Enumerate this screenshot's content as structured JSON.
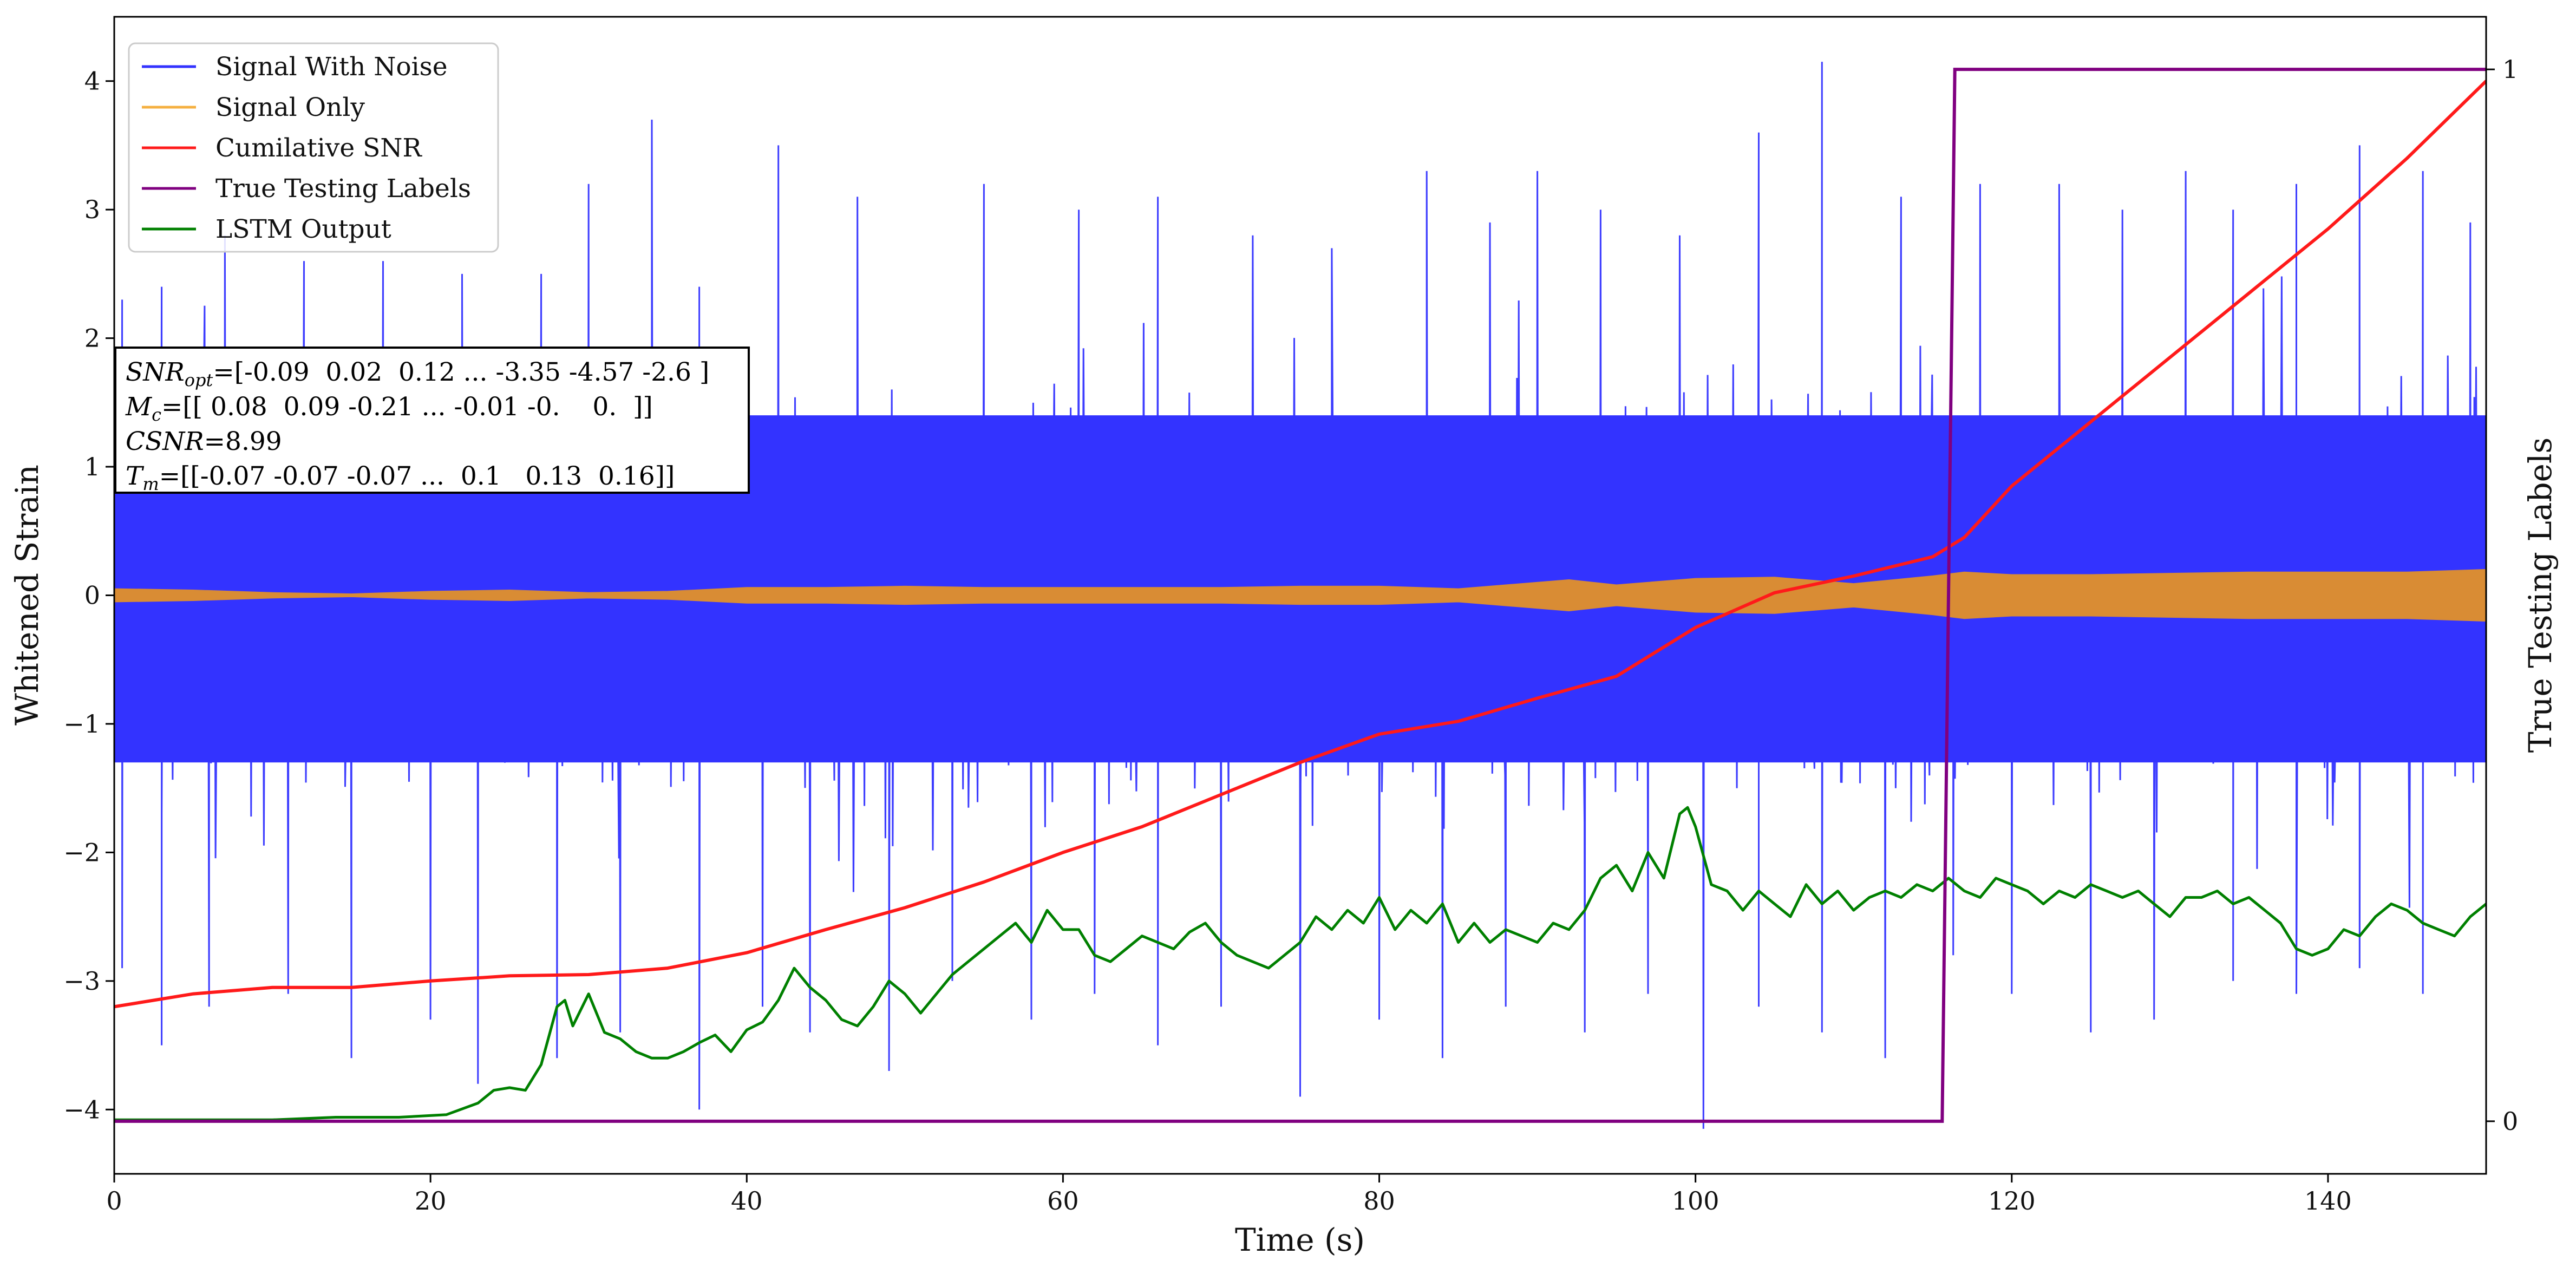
{
  "chart_data": {
    "type": "line",
    "title": "",
    "xlabel": "Time (s)",
    "ylabel": "Whitened Strain",
    "y2label": "True Testing Labels",
    "xlim": [
      0,
      150
    ],
    "ylim": [
      -4.5,
      4.5
    ],
    "y2lim": [
      -0.05,
      1.05
    ],
    "xticks": [
      0,
      20,
      40,
      60,
      80,
      100,
      120,
      140
    ],
    "yticks": [
      -4,
      -3,
      -2,
      -1,
      0,
      1,
      2,
      3,
      4
    ],
    "y2ticks": [
      0,
      1
    ],
    "grid": false,
    "legend_position": "top-left",
    "legend": [
      {
        "name": "Signal With Noise",
        "color": "#3333ff"
      },
      {
        "name": "Signal Only",
        "color": "#f5b041"
      },
      {
        "name": "Cumilative SNR",
        "color": "#ff1a1a"
      },
      {
        "name": "True Testing Labels",
        "color": "#800080"
      },
      {
        "name": "LSTM Output",
        "color": "#008000"
      }
    ],
    "annotation": [
      {
        "name": "SNR",
        "sub": "opt",
        "value": "=[-0.09  0.02  0.12 ... -3.35 -4.57 -2.6 ]"
      },
      {
        "name": "M",
        "sub": "c",
        "value": "=[[ 0.08  0.09 -0.21 ... -0.01 -0.    0.  ]]"
      },
      {
        "name": "CSNR",
        "sub": "",
        "value": "=8.99"
      },
      {
        "name": "T",
        "sub": "m",
        "value": "=[[-0.07 -0.07 -0.07 ...  0.1   0.13  0.16]]"
      }
    ],
    "series": [
      {
        "name": "Signal With Noise",
        "axis": "left",
        "style": "noise band",
        "color": "#3333ff",
        "band_upper": 1.4,
        "band_lower": -1.3,
        "peaks": [
          [
            0.5,
            2.3
          ],
          [
            3,
            2.4
          ],
          [
            7,
            2.8
          ],
          [
            12,
            2.6
          ],
          [
            17,
            2.6
          ],
          [
            22,
            2.5
          ],
          [
            27,
            2.5
          ],
          [
            30,
            3.2
          ],
          [
            34,
            3.7
          ],
          [
            37,
            2.4
          ],
          [
            42,
            3.5
          ],
          [
            47,
            3.1
          ],
          [
            55,
            3.2
          ],
          [
            61,
            3.0
          ],
          [
            66,
            3.1
          ],
          [
            72,
            2.8
          ],
          [
            77,
            2.7
          ],
          [
            83,
            3.3
          ],
          [
            87,
            2.9
          ],
          [
            90,
            3.3
          ],
          [
            94,
            3.0
          ],
          [
            99,
            2.8
          ],
          [
            104,
            3.6
          ],
          [
            108,
            4.15
          ],
          [
            113,
            3.1
          ],
          [
            118,
            3.2
          ],
          [
            123,
            3.2
          ],
          [
            127,
            3.0
          ],
          [
            131,
            3.3
          ],
          [
            134,
            3.0
          ],
          [
            138,
            3.2
          ],
          [
            142,
            3.5
          ],
          [
            146,
            3.3
          ],
          [
            149,
            2.9
          ]
        ],
        "troughs": [
          [
            0.5,
            -2.9
          ],
          [
            3,
            -3.5
          ],
          [
            6,
            -3.2
          ],
          [
            11,
            -3.1
          ],
          [
            15,
            -3.6
          ],
          [
            20,
            -3.3
          ],
          [
            23,
            -3.8
          ],
          [
            28,
            -3.6
          ],
          [
            32,
            -3.4
          ],
          [
            37,
            -4.0
          ],
          [
            41,
            -3.2
          ],
          [
            44,
            -3.4
          ],
          [
            49,
            -3.7
          ],
          [
            53,
            -3.0
          ],
          [
            58,
            -3.3
          ],
          [
            62,
            -3.1
          ],
          [
            66,
            -3.5
          ],
          [
            70,
            -3.2
          ],
          [
            75,
            -3.9
          ],
          [
            80,
            -3.3
          ],
          [
            84,
            -3.6
          ],
          [
            88,
            -3.2
          ],
          [
            93,
            -3.4
          ],
          [
            97,
            -3.1
          ],
          [
            100.5,
            -4.15
          ],
          [
            104,
            -3.2
          ],
          [
            108,
            -3.4
          ],
          [
            112,
            -3.6
          ],
          [
            116.3,
            -2.8
          ],
          [
            120,
            -3.1
          ],
          [
            125,
            -3.4
          ],
          [
            129,
            -3.3
          ],
          [
            134,
            -3.0
          ],
          [
            138,
            -3.1
          ],
          [
            142,
            -2.9
          ],
          [
            146,
            -3.1
          ]
        ]
      },
      {
        "name": "Signal Only",
        "axis": "left",
        "style": "envelope",
        "color": "#d98c34",
        "x": [
          0,
          5,
          10,
          15,
          20,
          25,
          30,
          35,
          40,
          45,
          50,
          55,
          60,
          65,
          70,
          75,
          80,
          85,
          88,
          92,
          95,
          100,
          105,
          110,
          115,
          117,
          120,
          125,
          130,
          135,
          140,
          145,
          150
        ],
        "amp": [
          0.05,
          0.04,
          0.02,
          0.01,
          0.03,
          0.04,
          0.02,
          0.03,
          0.06,
          0.06,
          0.07,
          0.06,
          0.06,
          0.06,
          0.06,
          0.07,
          0.07,
          0.05,
          0.08,
          0.12,
          0.08,
          0.13,
          0.14,
          0.09,
          0.15,
          0.18,
          0.16,
          0.16,
          0.17,
          0.18,
          0.18,
          0.18,
          0.2
        ]
      },
      {
        "name": "Cumilative SNR",
        "axis": "left",
        "style": "line",
        "color": "#ff1a1a",
        "x": [
          0,
          5,
          10,
          15,
          20,
          25,
          30,
          35,
          40,
          45,
          50,
          55,
          60,
          65,
          70,
          75,
          80,
          85,
          90,
          95,
          100,
          105,
          110,
          115,
          117,
          120,
          125,
          130,
          135,
          140,
          145,
          150
        ],
        "y": [
          -3.2,
          -3.1,
          -3.05,
          -3.05,
          -3.0,
          -2.96,
          -2.95,
          -2.9,
          -2.78,
          -2.6,
          -2.43,
          -2.23,
          -2.0,
          -1.8,
          -1.55,
          -1.3,
          -1.08,
          -0.98,
          -0.8,
          -0.63,
          -0.25,
          0.02,
          0.15,
          0.3,
          0.45,
          0.85,
          1.35,
          1.85,
          2.35,
          2.85,
          3.4,
          4.0
        ]
      },
      {
        "name": "True Testing Labels",
        "axis": "right",
        "style": "step",
        "color": "#800080",
        "x": [
          0,
          115.6,
          116.4,
          150
        ],
        "y": [
          0,
          0,
          1,
          1
        ]
      },
      {
        "name": "LSTM Output",
        "axis": "left",
        "style": "line",
        "color": "#008000",
        "x": [
          0,
          5,
          10,
          14,
          18,
          21,
          23,
          24,
          25,
          26,
          27,
          28,
          28.5,
          29,
          30,
          31,
          32,
          33,
          34,
          35,
          36,
          37,
          38,
          39,
          40,
          41,
          42,
          43,
          44,
          45,
          46,
          47,
          48,
          49,
          50,
          51,
          52,
          53,
          54,
          55,
          56,
          57,
          58,
          59,
          60,
          61,
          62,
          63,
          64,
          65,
          66,
          67,
          68,
          69,
          70,
          71,
          72,
          73,
          74,
          75,
          76,
          77,
          78,
          79,
          80,
          81,
          82,
          83,
          84,
          85,
          86,
          87,
          88,
          89,
          90,
          91,
          92,
          93,
          94,
          95,
          96,
          97,
          98,
          99,
          99.5,
          100,
          101,
          102,
          103,
          104,
          105,
          106,
          107,
          108,
          109,
          110,
          111,
          112,
          113,
          114,
          115,
          116,
          117,
          118,
          119,
          120,
          121,
          122,
          123,
          124,
          125,
          126,
          127,
          128,
          129,
          130,
          131,
          132,
          133,
          134,
          135,
          136,
          137,
          138,
          139,
          140,
          141,
          142,
          143,
          144,
          145,
          146,
          147,
          148,
          149,
          150
        ],
        "y": [
          -4.08,
          -4.08,
          -4.08,
          -4.06,
          -4.06,
          -4.04,
          -3.95,
          -3.85,
          -3.83,
          -3.85,
          -3.65,
          -3.2,
          -3.15,
          -3.35,
          -3.1,
          -3.4,
          -3.45,
          -3.55,
          -3.6,
          -3.6,
          -3.55,
          -3.48,
          -3.42,
          -3.55,
          -3.38,
          -3.32,
          -3.15,
          -2.9,
          -3.05,
          -3.15,
          -3.3,
          -3.35,
          -3.2,
          -3.0,
          -3.1,
          -3.25,
          -3.1,
          -2.95,
          -2.85,
          -2.75,
          -2.65,
          -2.55,
          -2.7,
          -2.45,
          -2.6,
          -2.6,
          -2.8,
          -2.85,
          -2.75,
          -2.65,
          -2.7,
          -2.75,
          -2.62,
          -2.55,
          -2.7,
          -2.8,
          -2.85,
          -2.9,
          -2.8,
          -2.7,
          -2.5,
          -2.6,
          -2.45,
          -2.55,
          -2.35,
          -2.6,
          -2.45,
          -2.55,
          -2.4,
          -2.7,
          -2.55,
          -2.7,
          -2.6,
          -2.65,
          -2.7,
          -2.55,
          -2.6,
          -2.45,
          -2.2,
          -2.1,
          -2.3,
          -2.0,
          -2.2,
          -1.7,
          -1.65,
          -1.8,
          -2.25,
          -2.3,
          -2.45,
          -2.3,
          -2.4,
          -2.5,
          -2.25,
          -2.4,
          -2.3,
          -2.45,
          -2.35,
          -2.3,
          -2.35,
          -2.25,
          -2.3,
          -2.2,
          -2.3,
          -2.35,
          -2.2,
          -2.25,
          -2.3,
          -2.4,
          -2.3,
          -2.35,
          -2.25,
          -2.3,
          -2.35,
          -2.3,
          -2.4,
          -2.5,
          -2.35,
          -2.35,
          -2.3,
          -2.4,
          -2.35,
          -2.45,
          -2.55,
          -2.75,
          -2.8,
          -2.75,
          -2.6,
          -2.65,
          -2.5,
          -2.4,
          -2.45,
          -2.55,
          -2.6,
          -2.65,
          -2.5,
          -2.4
        ]
      }
    ]
  }
}
